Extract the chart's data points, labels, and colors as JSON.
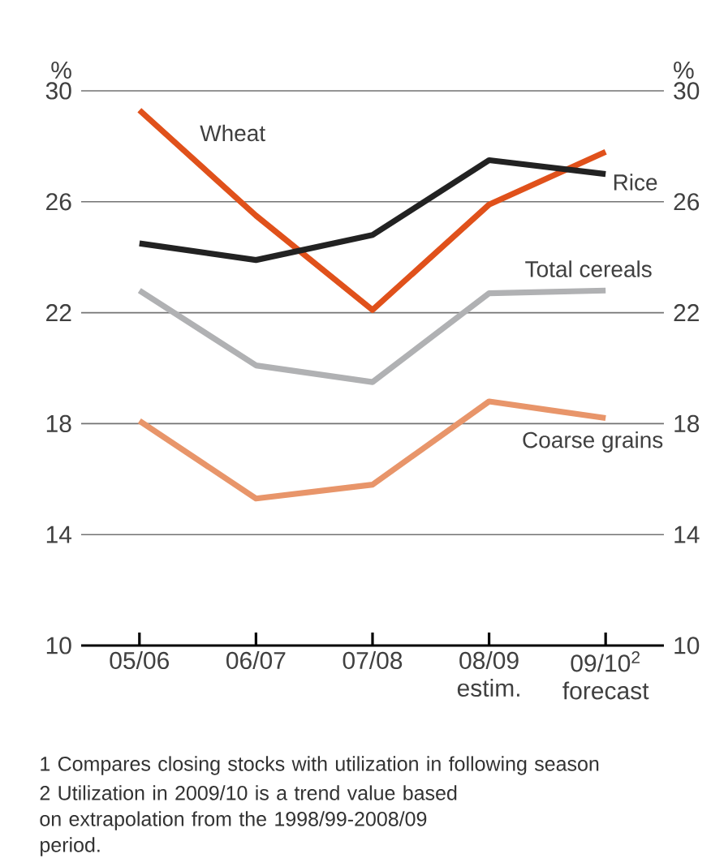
{
  "chart_data": {
    "type": "line",
    "ylabel": "%",
    "y2label": "%",
    "categories": [
      "05/06",
      "06/07",
      "07/08",
      "08/09 estim.",
      "09/10$^{2}$ forecast"
    ],
    "series": [
      {
        "name": "Wheat",
        "color": "#e0511b",
        "values": [
          29.3,
          25.5,
          22.1,
          25.9,
          27.8
        ]
      },
      {
        "name": "Rice",
        "color": "#222222",
        "values": [
          24.5,
          23.9,
          24.8,
          27.5,
          27.0
        ]
      },
      {
        "name": "Total cereals",
        "color": "#b0b1b3",
        "values": [
          22.8,
          20.1,
          19.5,
          22.7,
          22.8
        ]
      },
      {
        "name": "Coarse grains",
        "color": "#e8956a",
        "values": [
          18.1,
          15.3,
          15.8,
          18.8,
          18.2
        ]
      }
    ],
    "ylim": [
      10,
      30
    ],
    "yticks": [
      10,
      14,
      18,
      22,
      26,
      30
    ],
    "y2lim": [
      10,
      30
    ],
    "y2ticks": [
      10,
      14,
      18,
      22,
      26,
      30
    ],
    "grid": "y",
    "annotations": [
      "1 Compares closing stocks with utilization in following season",
      "2 Utilization in 2009/10 is a trend value based on extrapolation from the 1998/99-2008/09 period."
    ]
  }
}
